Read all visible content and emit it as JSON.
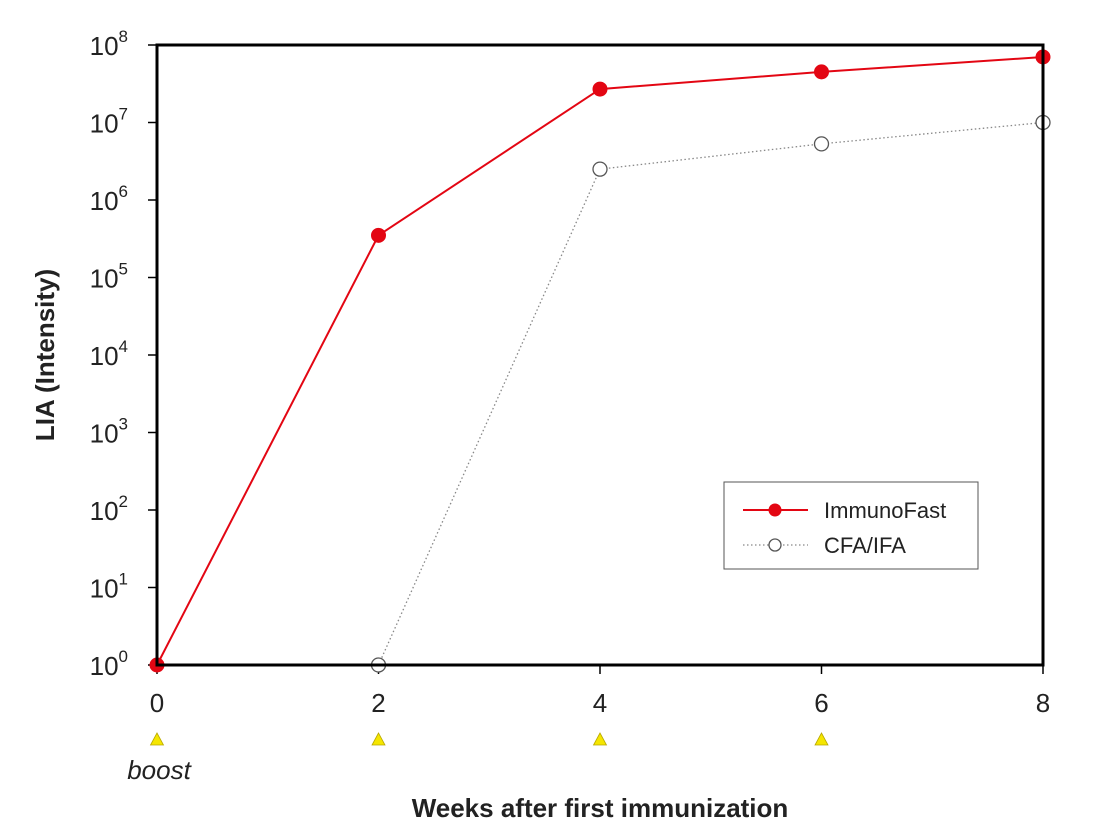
{
  "chart_data": {
    "type": "line",
    "xlabel": "Weeks after first immunization",
    "ylabel": "LIA (Intensity)",
    "x_ticks": [
      0,
      2,
      4,
      6,
      8
    ],
    "y_scale": "log",
    "y_tick_exponents": [
      0,
      1,
      2,
      3,
      4,
      5,
      6,
      7,
      8
    ],
    "y_tick_base": "10",
    "xlim": [
      0,
      8
    ],
    "ylim": [
      1,
      100000000
    ],
    "grid": false,
    "legend_position": "center-right",
    "series": [
      {
        "name": "ImmunoFast",
        "color": "#e30613",
        "marker": "filled-circle",
        "line": "solid",
        "x": [
          0,
          2,
          4,
          6,
          8
        ],
        "y": [
          1,
          350000,
          27000000,
          45000000,
          70000000
        ]
      },
      {
        "name": "CFA/IFA",
        "color": "#888888",
        "marker": "open-circle",
        "line": "dotted",
        "x": [
          2,
          4,
          6,
          8
        ],
        "y": [
          1,
          2500000,
          5300000,
          10000000
        ]
      }
    ],
    "annotations": {
      "boost_weeks": [
        0,
        2,
        4,
        6
      ],
      "boost_marker_color": "#f5e600",
      "boost_label": "boost"
    }
  }
}
